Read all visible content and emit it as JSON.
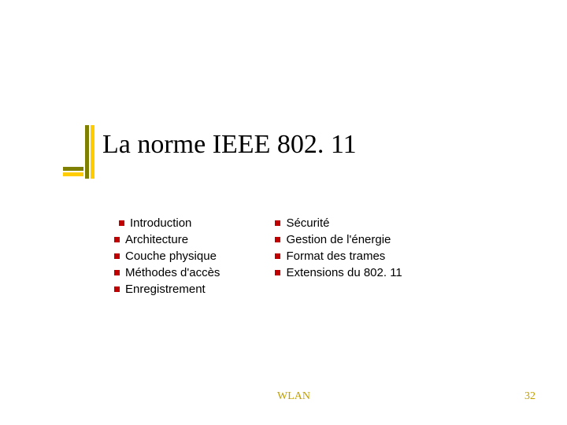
{
  "title": "La norme IEEE 802. 11",
  "left_column": [
    " Introduction",
    "Architecture",
    "Couche physique",
    "Méthodes d'accès",
    "Enregistrement"
  ],
  "right_column": [
    "Sécurité",
    "Gestion de l'énergie",
    "Format des trames",
    "Extensions du 802. 11"
  ],
  "footer": "WLAN",
  "page": "32",
  "colors": {
    "bullet": "#c00000",
    "accent1": "#808000",
    "accent2": "#ffcc00",
    "footer_text": "#c0a000"
  }
}
